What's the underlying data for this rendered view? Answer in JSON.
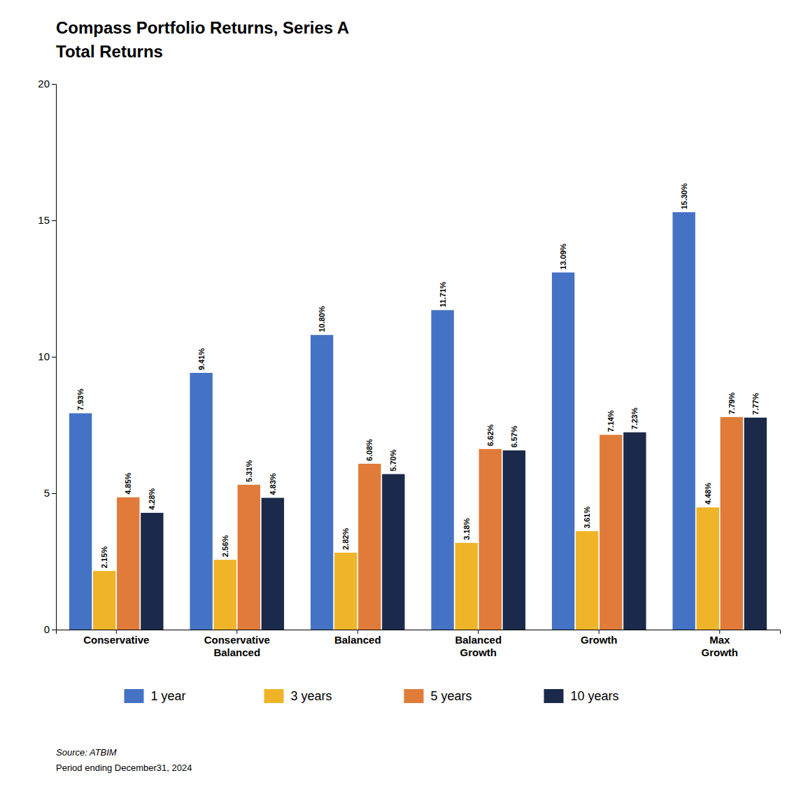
{
  "chart_data": {
    "type": "bar",
    "title": "Compass Portfolio Returns, Series A",
    "subtitle": "Total Returns",
    "categories": [
      "Conservative",
      "Conservative\nBalanced",
      "Balanced",
      "Balanced\nGrowth",
      "Growth",
      "Max\nGrowth"
    ],
    "series": [
      {
        "name": "1 year",
        "color": "#4472C4",
        "values": [
          7.93,
          9.41,
          10.8,
          11.71,
          13.09,
          15.3
        ],
        "value_labels": [
          "7.93%",
          "9.41%",
          "10.80%",
          "11.71%",
          "13.09%",
          "15.30%"
        ]
      },
      {
        "name": "3 years",
        "color": "#F0B429",
        "values": [
          2.15,
          2.56,
          2.82,
          3.18,
          3.61,
          4.48
        ],
        "value_labels": [
          "2.15%",
          "2.56%",
          "2.82%",
          "3.18%",
          "3.61%",
          "4.48%"
        ]
      },
      {
        "name": "5 years",
        "color": "#E07B39",
        "values": [
          4.85,
          5.31,
          6.08,
          6.62,
          7.14,
          7.79
        ],
        "value_labels": [
          "4.85%",
          "5.31%",
          "6.08%",
          "6.62%",
          "7.14%",
          "7.79%"
        ]
      },
      {
        "name": "10 years",
        "color": "#1B2A4A",
        "values": [
          4.28,
          4.83,
          5.7,
          6.57,
          7.23,
          7.77
        ],
        "value_labels": [
          "4.28%",
          "4.83%",
          "5.70%",
          "6.57%",
          "7.23%",
          "7.77%"
        ]
      }
    ],
    "ylim": [
      0,
      20
    ],
    "yticks": [
      0,
      5,
      10,
      15,
      20
    ],
    "grid": false,
    "legend": "bottom",
    "data_labels": true,
    "annotations": [
      "Source: ATBIM",
      "Period ending December31, 2024"
    ]
  }
}
